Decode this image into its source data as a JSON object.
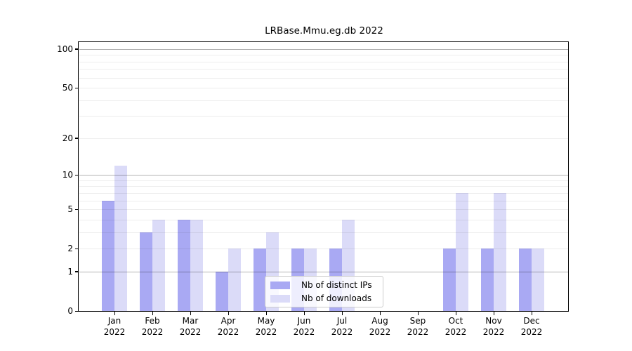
{
  "title": "LRBase.Mmu.eg.db 2022",
  "colors": {
    "background": "#ffffff",
    "axis": "#000000",
    "major_grid": "rgba(0,0,0,0.30)",
    "minor_grid": "rgba(0,0,0,0.07)"
  },
  "chart_data": {
    "type": "bar",
    "title": "LRBase.Mmu.eg.db 2022",
    "year_label": "2022",
    "categories": [
      "Jan",
      "Feb",
      "Mar",
      "Apr",
      "May",
      "Jun",
      "Jul",
      "Aug",
      "Sep",
      "Oct",
      "Nov",
      "Dec"
    ],
    "series": [
      {
        "name": "Nb of distinct IPs",
        "color": "#a9a9f3",
        "values": [
          6,
          3,
          4,
          1,
          2,
          2,
          2,
          0,
          0,
          2,
          2,
          2
        ]
      },
      {
        "name": "Nb of downloads",
        "color": "#dbdbf8",
        "values": [
          12,
          4,
          4,
          2,
          3,
          2,
          4,
          0,
          0,
          7,
          7,
          2
        ]
      }
    ],
    "y_scale": "log10(1+value)",
    "y_ticks": [
      0,
      1,
      2,
      5,
      10,
      20,
      50,
      100
    ],
    "y_gridlines_major": [
      1,
      10,
      100
    ],
    "y_gridlines_minor": [
      2,
      3,
      4,
      5,
      6,
      7,
      8,
      9,
      20,
      30,
      40,
      50,
      60,
      70,
      80,
      90
    ],
    "ylim": [
      0,
      112
    ],
    "xlabel": "",
    "ylabel": "",
    "grid": true,
    "legend_position": "lower center"
  }
}
